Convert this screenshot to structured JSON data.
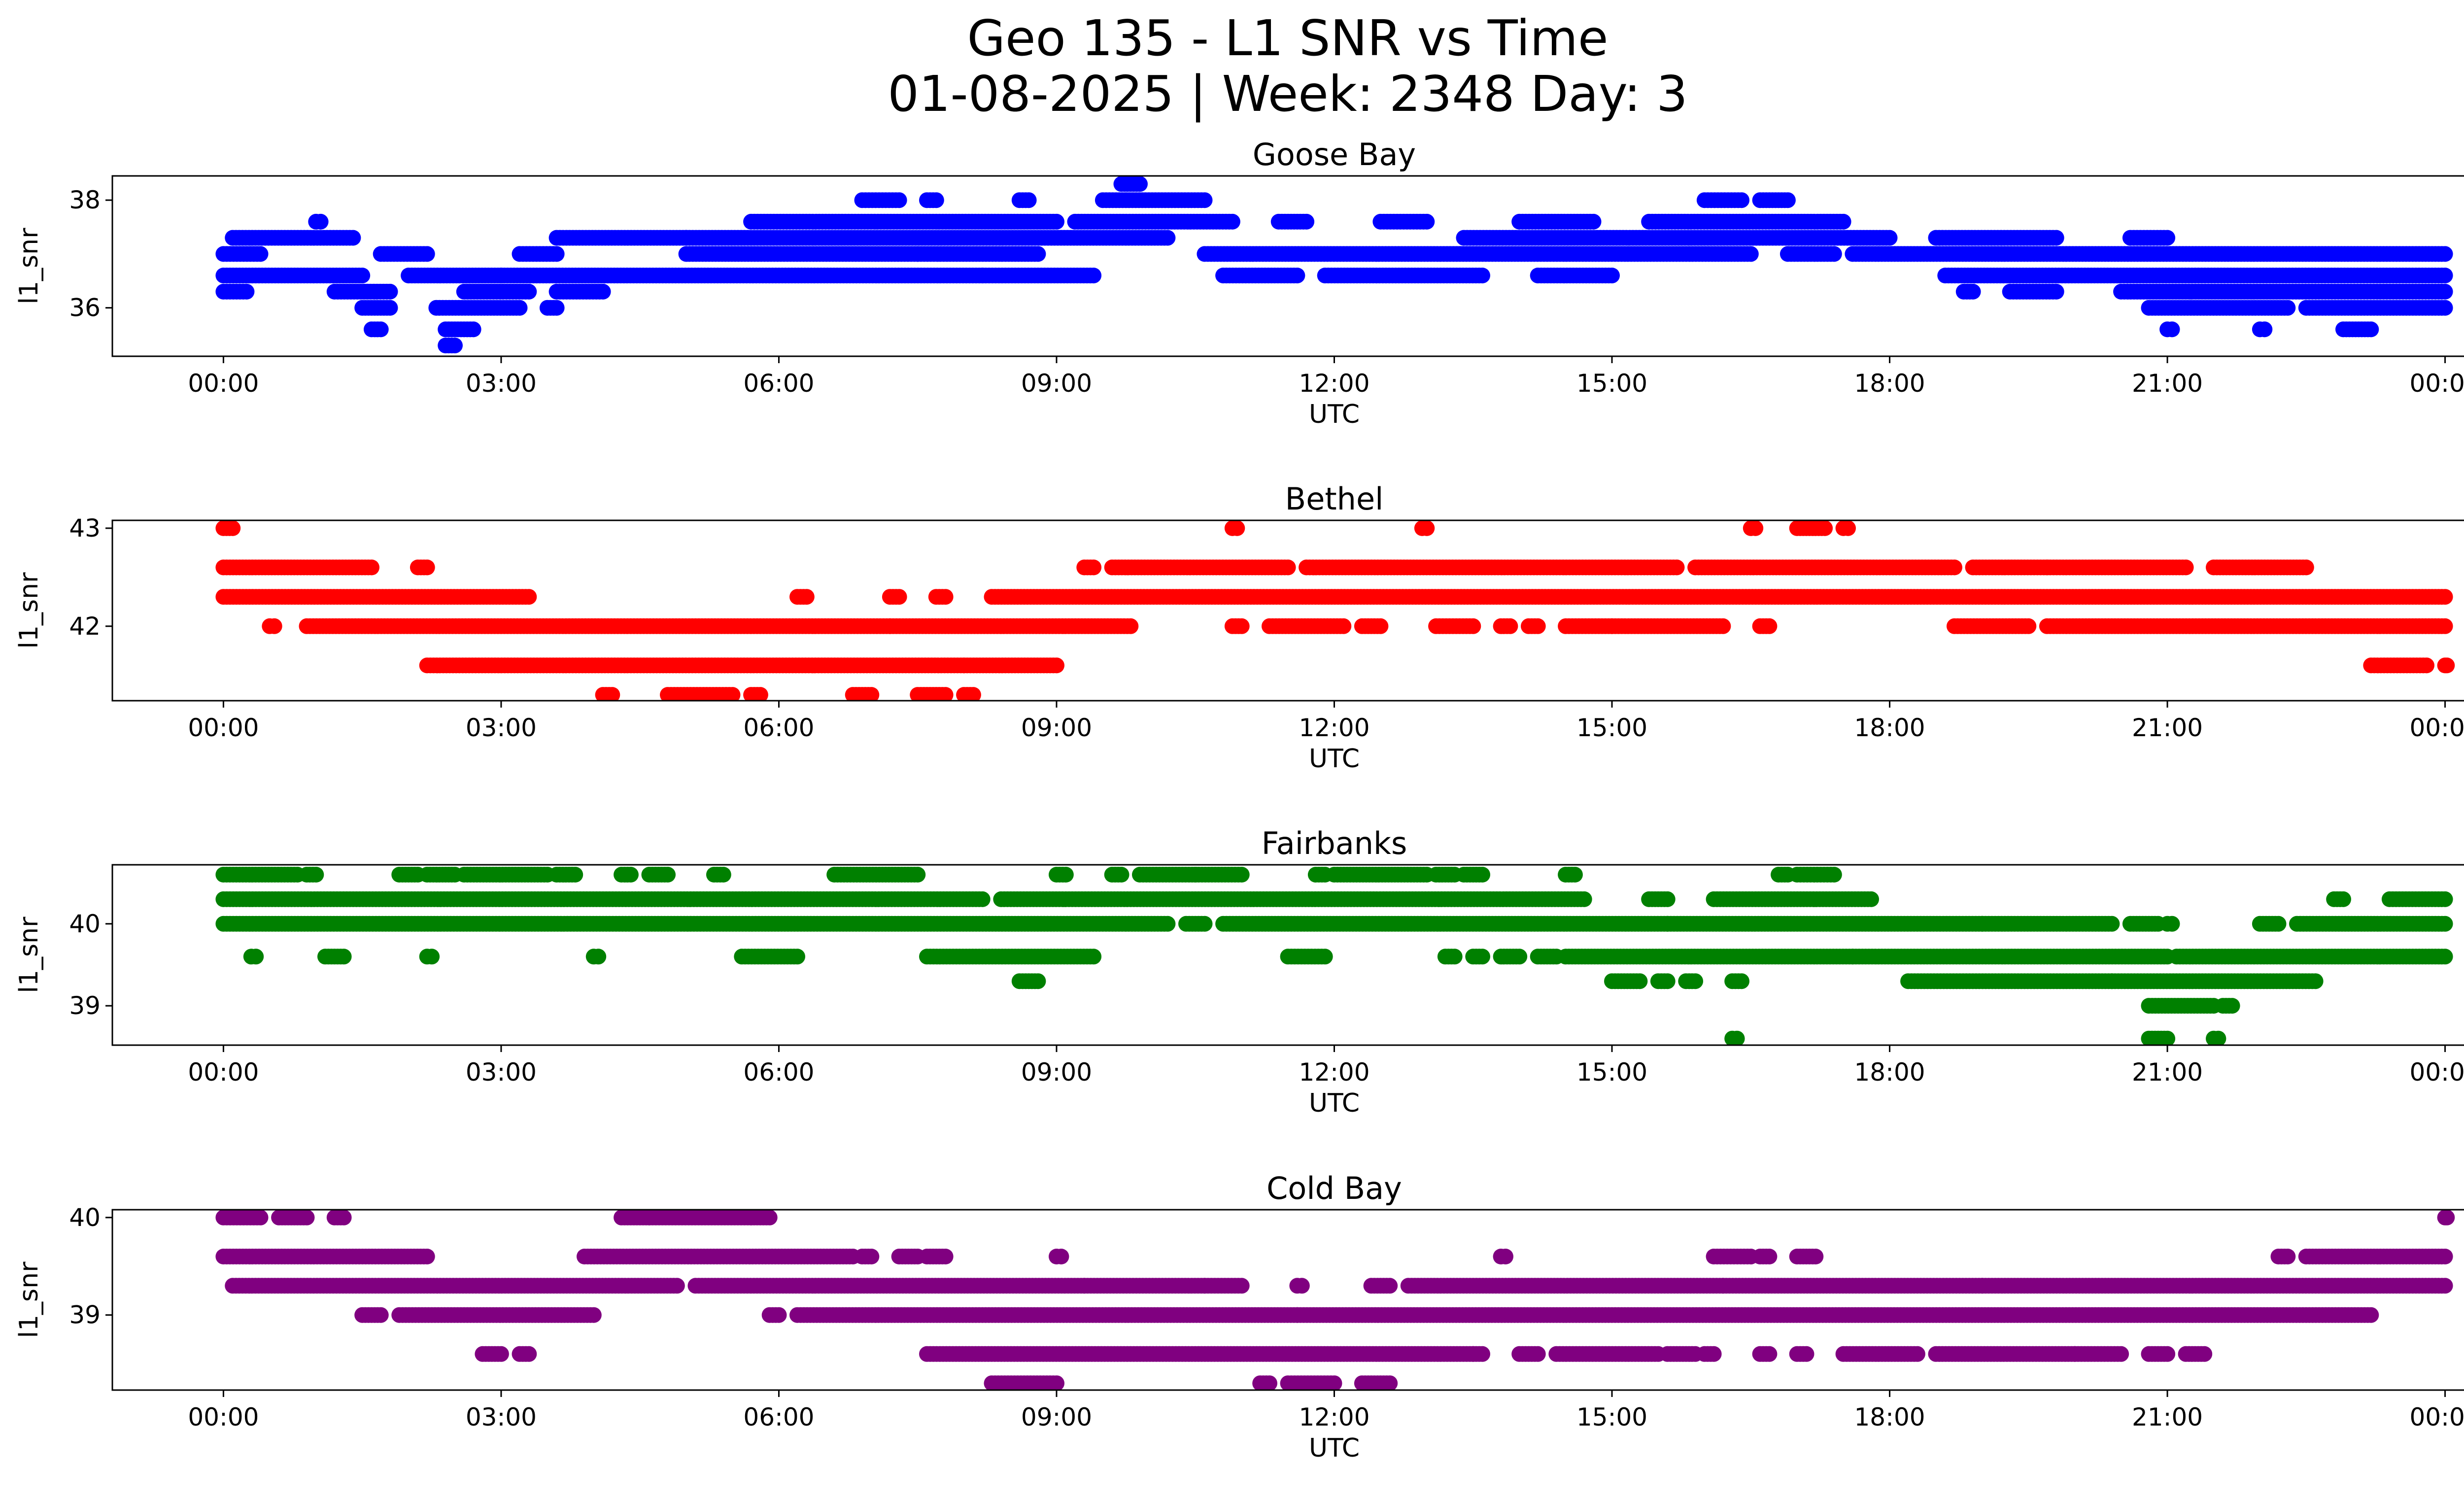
{
  "figure": {
    "title_line1": "Geo 135 - L1 SNR vs Time",
    "title_line2": "01-08-2025 | Week: 2348 Day: 3"
  },
  "chart_data": [
    {
      "type": "scatter",
      "title": "Goose Bay",
      "xlabel": "UTC",
      "ylabel": "l1_snr",
      "color": "#0000ff",
      "xlim_hours": [
        -1.2,
        25.2
      ],
      "ylim": [
        35.1,
        38.45
      ],
      "x_ticks": [
        "00:00",
        "03:00",
        "06:00",
        "09:00",
        "12:00",
        "15:00",
        "18:00",
        "21:00",
        "00:00"
      ],
      "y_ticks": [
        36,
        38
      ],
      "bands": [
        {
          "y": 36.3,
          "segments": [
            [
              0,
              0.25
            ],
            [
              1.2,
              1.8
            ],
            [
              2.6,
              3.3
            ],
            [
              3.6,
              4.1
            ],
            [
              18.8,
              18.9
            ],
            [
              19.3,
              19.8
            ],
            [
              20.5,
              24.0
            ]
          ]
        },
        {
          "y": 36.6,
          "segments": [
            [
              0,
              1.5
            ],
            [
              2.0,
              3.0
            ],
            [
              3.0,
              8.2
            ],
            [
              8.2,
              9.4
            ],
            [
              10.8,
              11.6
            ],
            [
              11.9,
              13.6
            ],
            [
              14.2,
              15.0
            ],
            [
              18.6,
              24.0
            ]
          ]
        },
        {
          "y": 37.0,
          "segments": [
            [
              0,
              0.4
            ],
            [
              1.7,
              2.2
            ],
            [
              3.2,
              3.6
            ],
            [
              5.0,
              7.5
            ],
            [
              7.5,
              8.8
            ],
            [
              10.6,
              16.5
            ],
            [
              16.9,
              17.4
            ],
            [
              17.6,
              24.0
            ]
          ]
        },
        {
          "y": 37.3,
          "segments": [
            [
              0.1,
              1.4
            ],
            [
              3.6,
              5.0
            ],
            [
              5.0,
              10.2
            ],
            [
              13.4,
              18.0
            ],
            [
              18.5,
              19.8
            ],
            [
              20.6,
              21.0
            ]
          ]
        },
        {
          "y": 37.6,
          "segments": [
            [
              1.0,
              1.05
            ],
            [
              5.7,
              9.0
            ],
            [
              9.2,
              10.9
            ],
            [
              11.4,
              11.7
            ],
            [
              12.5,
              13.0
            ],
            [
              14.0,
              14.8
            ],
            [
              15.4,
              17.5
            ]
          ]
        },
        {
          "y": 38.0,
          "segments": [
            [
              6.9,
              7.3
            ],
            [
              7.6,
              7.7
            ],
            [
              8.6,
              8.7
            ],
            [
              9.5,
              10.6
            ],
            [
              16.0,
              16.4
            ],
            [
              16.6,
              16.9
            ]
          ]
        },
        {
          "y": 38.3,
          "segments": [
            [
              9.7,
              9.9
            ]
          ]
        },
        {
          "y": 36.0,
          "segments": [
            [
              1.5,
              1.8
            ],
            [
              2.3,
              3.2
            ],
            [
              3.5,
              3.6
            ],
            [
              20.8,
              22.3
            ],
            [
              22.5,
              24.0
            ]
          ]
        },
        {
          "y": 35.6,
          "segments": [
            [
              1.6,
              1.7
            ],
            [
              2.4,
              2.7
            ],
            [
              21.0,
              21.05
            ],
            [
              22.0,
              22.05
            ],
            [
              22.9,
              23.2
            ]
          ]
        },
        {
          "y": 35.3,
          "segments": [
            [
              2.4,
              2.5
            ]
          ]
        }
      ]
    },
    {
      "type": "scatter",
      "title": "Bethel",
      "xlabel": "UTC",
      "ylabel": "l1_snr",
      "color": "#ff0000",
      "xlim_hours": [
        -1.2,
        25.2
      ],
      "ylim": [
        41.24,
        43.08
      ],
      "x_ticks": [
        "00:00",
        "03:00",
        "06:00",
        "09:00",
        "12:00",
        "15:00",
        "18:00",
        "21:00",
        "00:00"
      ],
      "y_ticks": [
        42,
        43
      ],
      "bands": [
        {
          "y": 43.0,
          "segments": [
            [
              0,
              0.1
            ],
            [
              10.9,
              10.95
            ],
            [
              12.95,
              13.0
            ],
            [
              16.5,
              16.55
            ],
            [
              17.0,
              17.3
            ],
            [
              17.5,
              17.55
            ]
          ]
        },
        {
          "y": 42.6,
          "segments": [
            [
              0,
              1.6
            ],
            [
              2.1,
              2.2
            ],
            [
              9.3,
              9.4
            ],
            [
              9.6,
              11.5
            ],
            [
              11.7,
              15.7
            ],
            [
              15.9,
              18.7
            ],
            [
              18.9,
              19.7
            ],
            [
              19.7,
              21.2
            ],
            [
              21.5,
              22.5
            ]
          ]
        },
        {
          "y": 42.3,
          "segments": [
            [
              0,
              3.3
            ],
            [
              6.2,
              6.3
            ],
            [
              7.2,
              7.3
            ],
            [
              7.7,
              7.8
            ],
            [
              8.3,
              24.0
            ]
          ]
        },
        {
          "y": 42.0,
          "segments": [
            [
              0.5,
              0.55
            ],
            [
              0.9,
              7.2
            ],
            [
              7.2,
              9.8
            ],
            [
              10.9,
              11.0
            ],
            [
              11.3,
              12.1
            ],
            [
              12.3,
              12.5
            ],
            [
              13.1,
              13.5
            ],
            [
              13.8,
              13.9
            ],
            [
              14.1,
              14.2
            ],
            [
              14.5,
              15.0
            ],
            [
              15.0,
              16.2
            ],
            [
              16.6,
              16.7
            ],
            [
              18.7,
              19.5
            ],
            [
              19.7,
              24.0
            ]
          ]
        },
        {
          "y": 41.6,
          "segments": [
            [
              2.2,
              8.0
            ],
            [
              8.0,
              9.0
            ],
            [
              23.2,
              23.8
            ],
            [
              24.0,
              24.02
            ]
          ]
        },
        {
          "y": 41.3,
          "segments": [
            [
              4.1,
              4.2
            ],
            [
              4.8,
              5.5
            ],
            [
              5.7,
              5.8
            ],
            [
              6.8,
              7.0
            ],
            [
              7.5,
              7.8
            ],
            [
              8.0,
              8.1
            ]
          ]
        }
      ]
    },
    {
      "type": "scatter",
      "title": "Fairbanks",
      "xlabel": "UTC",
      "ylabel": "l1_snr",
      "color": "#008000",
      "xlim_hours": [
        -1.2,
        25.2
      ],
      "ylim": [
        38.52,
        40.72
      ],
      "x_ticks": [
        "00:00",
        "03:00",
        "06:00",
        "09:00",
        "12:00",
        "15:00",
        "18:00",
        "21:00",
        "00:00"
      ],
      "y_ticks": [
        39,
        40
      ],
      "bands": [
        {
          "y": 40.6,
          "segments": [
            [
              0,
              0.8
            ],
            [
              0.9,
              1.0
            ],
            [
              1.9,
              2.1
            ],
            [
              2.2,
              2.5
            ],
            [
              2.6,
              3.5
            ],
            [
              3.6,
              3.8
            ],
            [
              4.3,
              4.4
            ],
            [
              4.6,
              4.8
            ],
            [
              5.3,
              5.4
            ],
            [
              6.6,
              7.5
            ],
            [
              9.0,
              9.1
            ],
            [
              9.6,
              9.7
            ],
            [
              9.9,
              10.5
            ],
            [
              10.5,
              11.0
            ],
            [
              11.8,
              11.9
            ],
            [
              12.0,
              13.0
            ],
            [
              13.1,
              13.3
            ],
            [
              13.4,
              13.6
            ],
            [
              14.5,
              14.6
            ],
            [
              16.8,
              16.9
            ],
            [
              17.0,
              17.4
            ]
          ]
        },
        {
          "y": 40.3,
          "segments": [
            [
              0,
              8.2
            ],
            [
              8.4,
              14.7
            ],
            [
              15.4,
              15.6
            ],
            [
              16.1,
              17.8
            ],
            [
              22.8,
              22.9
            ],
            [
              23.4,
              24.0
            ]
          ]
        },
        {
          "y": 40.0,
          "segments": [
            [
              0,
              10.2
            ],
            [
              10.4,
              10.6
            ],
            [
              10.8,
              15.6
            ],
            [
              15.6,
              19.0
            ],
            [
              19.0,
              20.4
            ],
            [
              20.6,
              20.9
            ],
            [
              21.0,
              21.05
            ],
            [
              22.0,
              22.2
            ],
            [
              22.4,
              24.0
            ]
          ]
        },
        {
          "y": 39.6,
          "segments": [
            [
              0.3,
              0.35
            ],
            [
              1.1,
              1.3
            ],
            [
              2.2,
              2.25
            ],
            [
              4.0,
              4.05
            ],
            [
              5.6,
              6.2
            ],
            [
              7.6,
              9.4
            ],
            [
              11.5,
              11.9
            ],
            [
              13.2,
              13.3
            ],
            [
              13.5,
              13.6
            ],
            [
              13.8,
              14.0
            ],
            [
              14.2,
              14.4
            ],
            [
              14.5,
              17.6
            ],
            [
              17.6,
              21.0
            ],
            [
              21.1,
              24.0
            ]
          ]
        },
        {
          "y": 39.3,
          "segments": [
            [
              8.6,
              8.8
            ],
            [
              15.0,
              15.3
            ],
            [
              15.5,
              15.6
            ],
            [
              15.8,
              15.9
            ],
            [
              16.3,
              16.4
            ],
            [
              18.2,
              20.4
            ],
            [
              20.4,
              22.6
            ]
          ]
        },
        {
          "y": 39.0,
          "segments": [
            [
              20.8,
              21.5
            ],
            [
              21.6,
              21.7
            ]
          ]
        },
        {
          "y": 38.6,
          "segments": [
            [
              16.3,
              16.35
            ],
            [
              20.8,
              21.0
            ],
            [
              21.5,
              21.55
            ]
          ]
        }
      ]
    },
    {
      "type": "scatter",
      "title": "Cold Bay",
      "xlabel": "UTC",
      "ylabel": "l1_snr",
      "color": "#800080",
      "xlim_hours": [
        -1.2,
        25.2
      ],
      "ylim": [
        38.23,
        40.08
      ],
      "x_ticks": [
        "00:00",
        "03:00",
        "06:00",
        "09:00",
        "12:00",
        "15:00",
        "18:00",
        "21:00",
        "00:00"
      ],
      "y_ticks": [
        39,
        40
      ],
      "bands": [
        {
          "y": 40.0,
          "segments": [
            [
              0,
              0.4
            ],
            [
              0.6,
              0.9
            ],
            [
              1.2,
              1.3
            ],
            [
              4.3,
              4.6
            ],
            [
              4.6,
              5.7
            ],
            [
              5.7,
              5.9
            ],
            [
              24.0,
              24.02
            ]
          ]
        },
        {
          "y": 39.6,
          "segments": [
            [
              0,
              2.2
            ],
            [
              3.9,
              6.8
            ],
            [
              6.9,
              7.0
            ],
            [
              7.3,
              7.5
            ],
            [
              7.6,
              7.8
            ],
            [
              9.0,
              9.05
            ],
            [
              13.8,
              13.85
            ],
            [
              16.1,
              16.5
            ],
            [
              16.6,
              16.7
            ],
            [
              17.0,
              17.2
            ],
            [
              22.2,
              22.3
            ],
            [
              22.5,
              24.0
            ]
          ]
        },
        {
          "y": 39.3,
          "segments": [
            [
              0.1,
              4.9
            ],
            [
              5.1,
              9.3
            ],
            [
              9.3,
              10.6
            ],
            [
              10.6,
              11.0
            ],
            [
              11.6,
              11.65
            ],
            [
              12.4,
              12.6
            ],
            [
              12.8,
              16.2
            ],
            [
              16.2,
              19.0
            ],
            [
              19.0,
              24.0
            ]
          ]
        },
        {
          "y": 39.0,
          "segments": [
            [
              1.5,
              1.7
            ],
            [
              1.9,
              4.0
            ],
            [
              5.9,
              6.0
            ],
            [
              6.2,
              11.6
            ],
            [
              11.6,
              23.2
            ]
          ]
        },
        {
          "y": 38.6,
          "segments": [
            [
              2.8,
              3.0
            ],
            [
              3.2,
              3.3
            ],
            [
              7.6,
              13.5
            ],
            [
              13.5,
              13.6
            ],
            [
              14.0,
              14.2
            ],
            [
              14.4,
              15.5
            ],
            [
              15.6,
              15.9
            ],
            [
              16.0,
              16.1
            ],
            [
              16.6,
              16.7
            ],
            [
              17.0,
              17.1
            ],
            [
              17.5,
              18.3
            ],
            [
              18.5,
              20.0
            ],
            [
              20.0,
              20.5
            ],
            [
              20.8,
              21.0
            ],
            [
              21.2,
              21.4
            ]
          ]
        },
        {
          "y": 38.3,
          "segments": [
            [
              8.3,
              9.0
            ],
            [
              11.2,
              11.3
            ],
            [
              11.5,
              12.0
            ],
            [
              12.3,
              12.6
            ]
          ]
        }
      ]
    }
  ]
}
